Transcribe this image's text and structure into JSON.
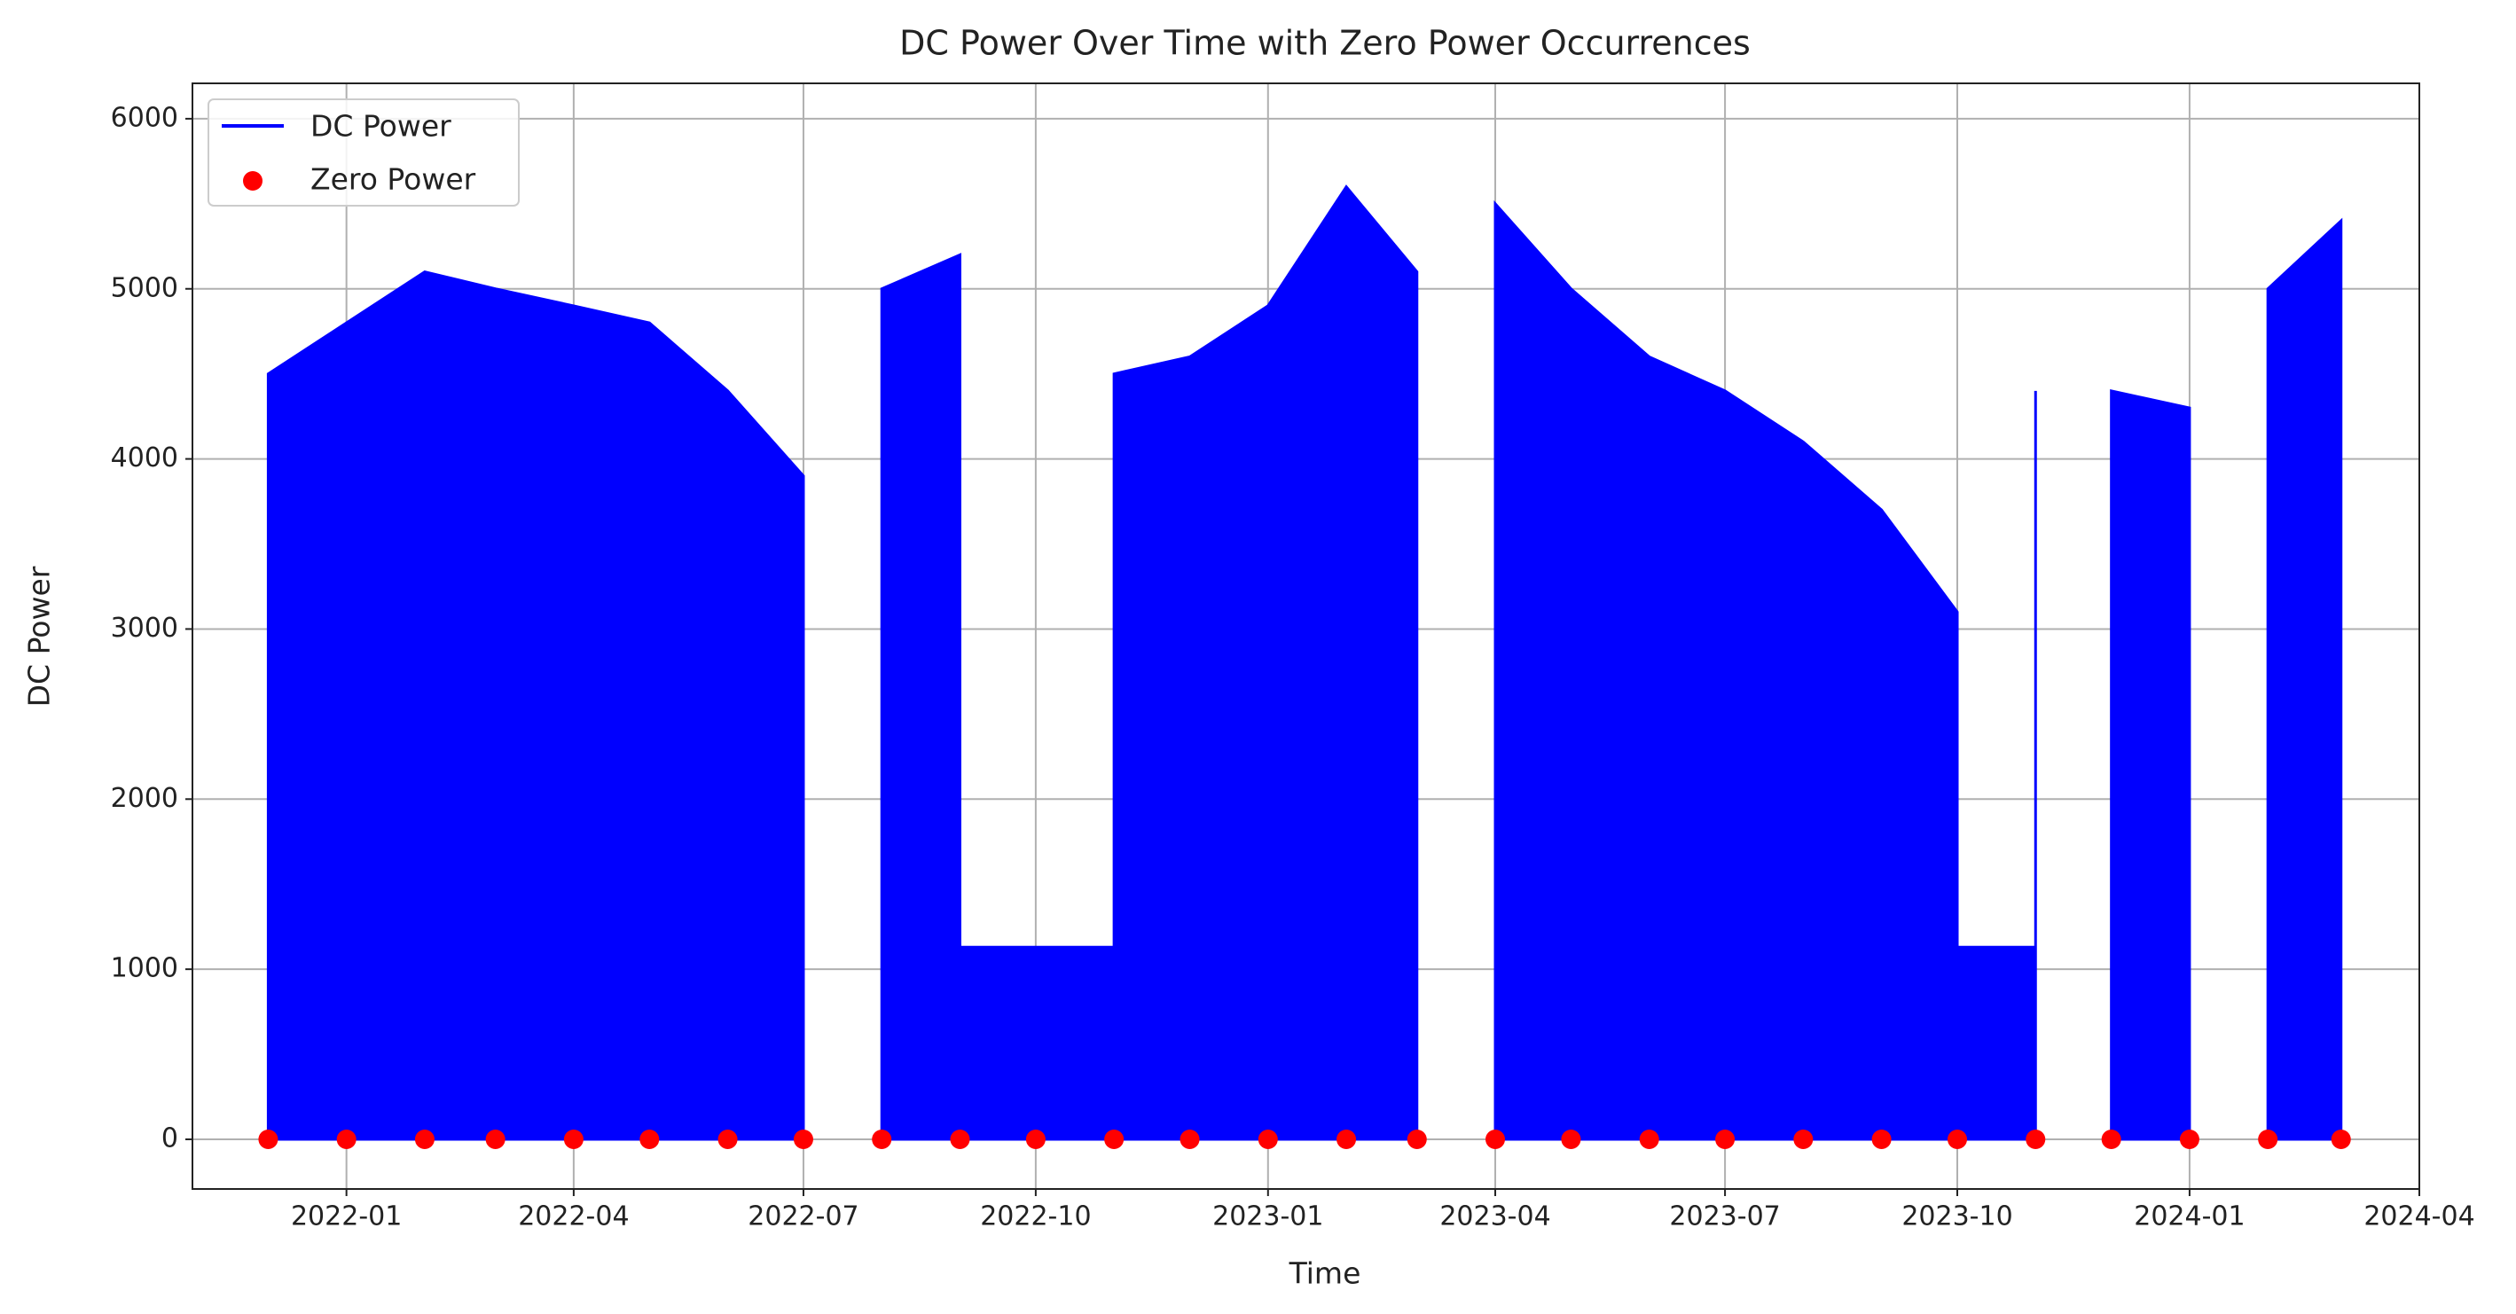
{
  "chart_data": {
    "type": "line",
    "title": "DC Power Over Time with Zero Power Occurrences",
    "x_label": "Time",
    "y_label": "DC Power",
    "xlim": [
      "2021-11",
      "2024-04"
    ],
    "xticks": [
      "2022-01",
      "2022-04",
      "2022-07",
      "2022-10",
      "2023-01",
      "2023-04",
      "2023-07",
      "2023-10",
      "2024-01",
      "2024-04"
    ],
    "ylim": [
      -292,
      6208
    ],
    "yticks": [
      0,
      1000,
      2000,
      3000,
      4000,
      5000,
      6000
    ],
    "grid": true,
    "legend": "upper-left",
    "series": [
      {
        "name": "DC Power",
        "color": "#0000ff",
        "type": "line",
        "filled": true,
        "x": [
          "2021-12",
          "2021-12",
          "2022-01",
          "2022-02",
          "2022-03",
          "2022-04",
          "2022-05",
          "2022-06",
          "2022-07",
          "2022-07",
          "2022-08",
          "2022-08",
          "2022-08",
          "2022-09",
          "2022-09",
          "2022-10",
          "2022-11",
          "2022-11",
          "2022-12",
          "2023-01",
          "2023-02",
          "2023-03",
          "2023-03",
          "2023-04",
          "2023-04",
          "2023-04",
          "2023-05",
          "2023-06",
          "2023-07",
          "2023-08",
          "2023-09",
          "2023-10",
          "2023-10",
          "2023-10",
          "2023-10",
          "2023-10",
          "2023-11",
          "2023-11",
          "2023-11",
          "2023-12",
          "2023-12",
          "2023-12",
          "2024-01",
          "2024-01",
          "2024-02",
          "2024-02",
          "2024-02",
          "2024-03",
          "2024-03"
        ],
        "values": [
          0,
          4500,
          4800,
          5100,
          5000,
          4900,
          4800,
          4400,
          3900,
          0,
          null,
          0,
          5000,
          5200,
          1130,
          1130,
          1130,
          4500,
          4600,
          4900,
          5600,
          5100,
          0,
          null,
          0,
          5500,
          5000,
          4600,
          4400,
          4100,
          3700,
          3100,
          0,
          null,
          0,
          1130,
          1130,
          4400,
          0,
          null,
          0,
          4400,
          4300,
          0,
          null,
          0,
          5000,
          5400,
          0
        ]
      },
      {
        "name": "Zero Power",
        "color": "#ff0000",
        "type": "scatter",
        "x": [
          "2021-12",
          "2022-01",
          "2022-02",
          "2022-03",
          "2022-04",
          "2022-05",
          "2022-06",
          "2022-07",
          "2022-08",
          "2022-09",
          "2022-10",
          "2022-11",
          "2022-12",
          "2023-01",
          "2023-02",
          "2023-03",
          "2023-04",
          "2023-05",
          "2023-06",
          "2023-07",
          "2023-08",
          "2023-09",
          "2023-10",
          "2023-11",
          "2023-12",
          "2024-01",
          "2024-02",
          "2024-03"
        ],
        "values": [
          0,
          0,
          0,
          0,
          0,
          0,
          0,
          0,
          0,
          0,
          0,
          0,
          0,
          0,
          0,
          0,
          0,
          0,
          0,
          0,
          0,
          0,
          0,
          0,
          0,
          0,
          0,
          0
        ]
      }
    ]
  }
}
